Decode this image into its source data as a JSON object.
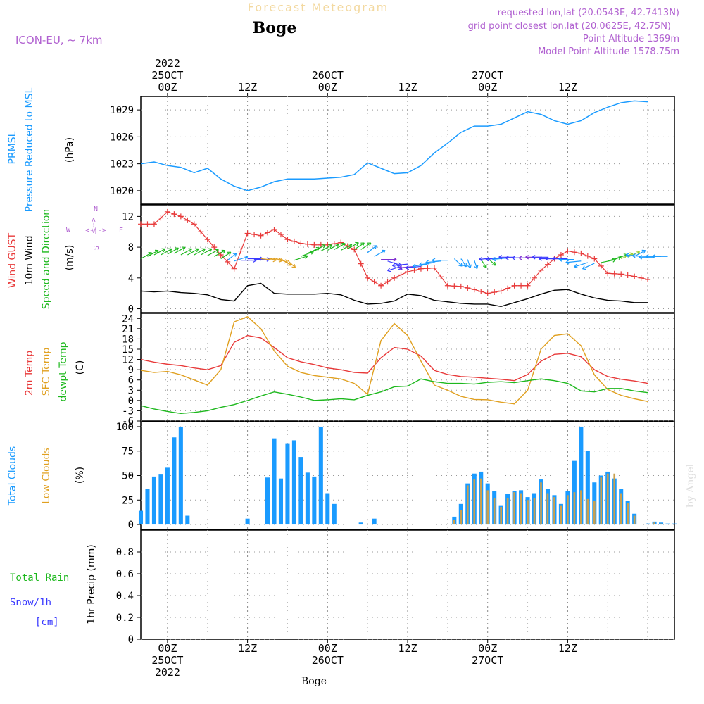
{
  "header": {
    "super_title": "Forecast Meteogram",
    "station": "Boge",
    "model": "ICON-EU, ~ 7km",
    "requested": "requested lon,lat (20.0543E, 42.7413N)",
    "grid_point": "grid point closest lon,lat (20.0625E, 42.75N)",
    "point_alt": "Point Altitude 1369m",
    "model_alt": "Model Point Altitude 1578.75m",
    "credit": "by Angel",
    "footer_station": "Boge"
  },
  "time_axis": {
    "top_labels": [
      {
        "hour": 0,
        "lines": [
          "2022",
          "25OCT",
          "00Z"
        ]
      },
      {
        "hour": 12,
        "lines": [
          "12Z"
        ]
      },
      {
        "hour": 24,
        "lines": [
          "26OCT",
          "00Z"
        ]
      },
      {
        "hour": 36,
        "lines": [
          "12Z"
        ]
      },
      {
        "hour": 48,
        "lines": [
          "27OCT",
          "00Z"
        ]
      },
      {
        "hour": 60,
        "lines": [
          "12Z"
        ]
      }
    ],
    "bottom_labels": [
      {
        "hour": 0,
        "lines": [
          "00Z",
          "25OCT",
          "2022"
        ]
      },
      {
        "hour": 12,
        "lines": [
          "12Z"
        ]
      },
      {
        "hour": 24,
        "lines": [
          "00Z",
          "26OCT"
        ]
      },
      {
        "hour": 36,
        "lines": [
          "12Z"
        ]
      },
      {
        "hour": 48,
        "lines": [
          "00Z",
          "27OCT"
        ]
      },
      {
        "hour": 60,
        "lines": [
          "12Z"
        ]
      }
    ]
  },
  "labels": {
    "p1": [
      {
        "text": "PRMSL",
        "color": "#1a9bff"
      },
      {
        "text": "Pressure Reduced to MSL",
        "color": "#1a9bff"
      },
      {
        "text": "(hPa)",
        "color": "#000000"
      }
    ],
    "p2": [
      {
        "text": "Wind GUST",
        "color": "#e83a3a"
      },
      {
        "text": "10m Wind",
        "color": "#000000"
      },
      {
        "text": "Speed and Direction",
        "color": "#1db81d"
      },
      {
        "text": "(m/s)",
        "color": "#000000"
      }
    ],
    "p3": [
      {
        "text": "2m Temp",
        "color": "#e83a3a"
      },
      {
        "text": "SFC Temp",
        "color": "#e0a020"
      },
      {
        "text": "dewpt Temp",
        "color": "#1db81d"
      },
      {
        "text": "(C)",
        "color": "#000000"
      }
    ],
    "p4": [
      {
        "text": "Total Clouds",
        "color": "#1a9bff"
      },
      {
        "text": "Low Clouds",
        "color": "#e0a020"
      },
      {
        "text": "(%)",
        "color": "#000000"
      }
    ],
    "p5_legend": [
      {
        "text": "Total  Rain",
        "color": "#1db81d"
      },
      {
        "text": "Snow/1h",
        "color": "#3a3aff"
      },
      {
        "text": "[cm]",
        "color": "#3a3aff"
      }
    ],
    "p5_axis": "1hr Precip (mm)",
    "compass": {
      "n": "N",
      "s": "S",
      "w": "W",
      "e": "E",
      "arrow_ns": "<-->",
      "arrow_we": "<-|->"
    }
  },
  "colors": {
    "pressure": "#1a9bff",
    "gust": "#e83a3a",
    "wind_speed": "#000000",
    "temp2m": "#e83a3a",
    "sfc": "#e0a020",
    "dewpt": "#1db81d",
    "total_clouds": "#1a9bff",
    "low_clouds": "#c8a050",
    "purple": "#b060d0",
    "frame": "#000000",
    "grid": "#999999"
  },
  "chart_data": [
    {
      "type": "line",
      "name": "PRMSL",
      "ylim": [
        1018.5,
        1030.5
      ],
      "yticks": [
        1020,
        1023,
        1026,
        1029
      ],
      "x": [
        -4,
        -2,
        0,
        2,
        4,
        6,
        8,
        10,
        12,
        14,
        16,
        18,
        20,
        22,
        24,
        26,
        28,
        30,
        32,
        34,
        36,
        38,
        40,
        42,
        44,
        46,
        48,
        50,
        52,
        54,
        56,
        58,
        60,
        62,
        64,
        66,
        68,
        70,
        72
      ],
      "series": [
        {
          "name": "PRMSL",
          "values": [
            1023.0,
            1023.2,
            1022.8,
            1022.6,
            1022.0,
            1022.5,
            1021.3,
            1020.5,
            1020.0,
            1020.4,
            1021.0,
            1021.3,
            1021.3,
            1021.3,
            1021.4,
            1021.5,
            1021.8,
            1023.1,
            1022.5,
            1021.9,
            1022.0,
            1022.8,
            1024.2,
            1025.3,
            1026.5,
            1027.2,
            1027.2,
            1027.4,
            1028.1,
            1028.8,
            1028.5,
            1027.8,
            1027.4,
            1027.8,
            1028.7,
            1029.3,
            1029.8,
            1030.0,
            1029.9
          ]
        }
      ]
    },
    {
      "type": "line",
      "name": "Wind",
      "ylim": [
        -0.5,
        13.5
      ],
      "yticks": [
        0,
        4,
        8,
        12
      ],
      "x": [
        -4,
        -2,
        0,
        2,
        4,
        6,
        8,
        10,
        12,
        14,
        16,
        18,
        20,
        22,
        24,
        26,
        28,
        30,
        32,
        34,
        36,
        38,
        40,
        42,
        44,
        46,
        48,
        50,
        52,
        54,
        56,
        58,
        60,
        62,
        64,
        66,
        68,
        70,
        72
      ],
      "series": [
        {
          "name": "Wind GUST",
          "values": [
            11.0,
            11.0,
            12.6,
            12.0,
            11.0,
            9.0,
            7.0,
            5.2,
            9.8,
            9.5,
            10.3,
            9.0,
            8.5,
            8.3,
            8.3,
            8.6,
            7.7,
            4.0,
            3.0,
            4.0,
            4.8,
            5.2,
            5.3,
            3.0,
            2.9,
            2.5,
            2.0,
            2.3,
            3.0,
            3.0,
            5.0,
            6.5,
            7.5,
            7.2,
            6.5,
            4.6,
            4.5,
            4.2,
            3.8
          ]
        },
        {
          "name": "10m Wind",
          "values": [
            2.3,
            2.2,
            2.3,
            2.1,
            2.0,
            1.8,
            1.2,
            1.0,
            3.0,
            3.3,
            2.0,
            1.9,
            1.9,
            1.9,
            2.0,
            1.8,
            1.1,
            0.6,
            0.7,
            1.0,
            1.9,
            1.7,
            1.1,
            0.9,
            0.7,
            0.6,
            0.6,
            0.3,
            0.8,
            1.3,
            1.9,
            2.4,
            2.5,
            1.9,
            1.4,
            1.1,
            1.0,
            0.8,
            0.8
          ]
        }
      ]
    },
    {
      "type": "line",
      "name": "Temperature",
      "ylim": [
        -6,
        25.5
      ],
      "yticks": [
        -6,
        -3,
        0,
        3,
        6,
        9,
        12,
        15,
        18,
        21,
        24
      ],
      "x": [
        -4,
        -2,
        0,
        2,
        4,
        6,
        8,
        10,
        12,
        14,
        16,
        18,
        20,
        22,
        24,
        26,
        28,
        30,
        32,
        34,
        36,
        38,
        40,
        42,
        44,
        46,
        48,
        50,
        52,
        54,
        56,
        58,
        60,
        62,
        64,
        66,
        68,
        70,
        72
      ],
      "series": [
        {
          "name": "2m Temp",
          "values": [
            12.0,
            11.2,
            10.6,
            10.2,
            9.5,
            9.0,
            10.2,
            17.0,
            19.0,
            18.3,
            15.5,
            12.5,
            11.3,
            10.5,
            9.5,
            9.0,
            8.2,
            8.0,
            12.5,
            15.5,
            15.0,
            13.0,
            8.8,
            7.6,
            7.0,
            6.8,
            6.5,
            6.2,
            5.8,
            7.6,
            11.5,
            13.5,
            13.8,
            12.8,
            9.0,
            7.0,
            6.2,
            5.7,
            5.0
          ]
        },
        {
          "name": "SFC Temp",
          "values": [
            8.8,
            8.2,
            8.5,
            7.5,
            6.0,
            4.5,
            9.0,
            23.0,
            24.5,
            21.0,
            14.5,
            10.0,
            8.2,
            7.3,
            6.8,
            6.3,
            5.0,
            1.8,
            17.5,
            22.5,
            19.0,
            11.5,
            4.5,
            3.0,
            1.2,
            0.3,
            0.2,
            -0.5,
            -1.0,
            3.0,
            15.0,
            19.0,
            19.5,
            16.0,
            7.5,
            3.2,
            1.5,
            0.5,
            -0.3
          ]
        },
        {
          "name": "dewpt Temp",
          "values": [
            -1.5,
            -2.5,
            -3.2,
            -3.8,
            -3.5,
            -3.0,
            -2.0,
            -1.2,
            0.0,
            1.3,
            2.5,
            1.8,
            1.0,
            0.0,
            0.2,
            0.5,
            0.2,
            1.5,
            2.5,
            4.0,
            4.2,
            6.3,
            5.5,
            5.0,
            5.0,
            4.8,
            5.3,
            5.5,
            5.2,
            5.8,
            6.3,
            5.8,
            5.0,
            2.8,
            2.5,
            3.5,
            3.5,
            2.8,
            2.3
          ]
        }
      ]
    },
    {
      "type": "bar",
      "name": "Clouds",
      "ylim": [
        -5,
        105
      ],
      "yticks": [
        0,
        25,
        50,
        75,
        100
      ],
      "x_start": -4,
      "x_step": 1,
      "series": [
        {
          "name": "Total Clouds",
          "values": [
            14,
            36,
            49,
            51,
            58,
            89,
            100,
            9,
            0,
            0,
            0,
            0,
            0,
            0,
            0,
            0,
            6,
            0,
            0,
            48,
            88,
            47,
            83,
            86,
            69,
            53,
            49,
            100,
            32,
            21,
            0,
            0,
            0,
            2,
            0,
            6,
            0,
            0,
            0,
            0,
            0,
            0,
            0,
            0,
            0,
            0,
            0,
            8,
            21,
            42,
            52,
            54,
            42,
            34,
            19,
            31,
            34,
            35,
            28,
            32,
            46,
            36,
            30,
            21,
            34,
            65,
            100,
            75,
            43,
            50,
            54,
            47,
            36,
            24,
            11,
            0,
            1,
            3,
            2,
            1,
            1,
            0
          ]
        },
        {
          "name": "Low Clouds",
          "values": [
            0,
            0,
            0,
            0,
            0,
            0,
            0,
            0,
            0,
            0,
            0,
            0,
            0,
            0,
            0,
            0,
            0,
            0,
            0,
            0,
            0,
            0,
            0,
            0,
            0,
            0,
            0,
            0,
            0,
            0,
            0,
            0,
            0,
            0,
            0,
            0,
            0,
            0,
            0,
            0,
            0,
            0,
            0,
            0,
            0,
            0,
            0,
            5,
            15,
            40,
            46,
            47,
            35,
            27,
            18,
            27,
            33,
            32,
            25,
            27,
            43,
            32,
            28,
            19,
            30,
            33,
            35,
            26,
            24,
            48,
            52,
            52,
            32,
            22,
            9,
            0,
            0,
            2,
            1,
            0,
            0,
            0
          ]
        }
      ]
    },
    {
      "type": "bar",
      "name": "1hr Precip",
      "ylim": [
        0,
        1.0
      ],
      "yticks": [
        0,
        0.2,
        0.4,
        0.6,
        0.8
      ],
      "series": [
        {
          "name": "Total Rain",
          "values": []
        },
        {
          "name": "Snow/1h",
          "values": []
        }
      ]
    }
  ],
  "wind_barbs": {
    "note_units": "m/s",
    "x_start": -4,
    "x_step": 1,
    "speed": [
      6.5,
      6.8,
      7.0,
      7.0,
      7.1,
      7.2,
      7.0,
      7.0,
      7.0,
      7.0,
      6.9,
      6.8,
      6.5,
      6.3,
      6.2,
      6.3,
      6.5,
      6.4,
      6.5,
      6.6,
      6.6,
      6.5,
      6.3,
      6.3,
      6.8,
      7.2,
      7.5,
      7.5,
      7.6,
      7.7,
      7.6,
      7.8,
      7.7,
      7.7,
      7.3,
      6.8,
      6.4,
      6.2,
      6.0,
      5.5,
      5.8,
      5.5,
      5.5,
      5.8,
      6.0,
      6.2,
      6.3,
      6.5,
      6.5,
      6.4,
      6.3,
      6.4,
      6.6,
      6.6,
      6.6,
      6.6,
      6.7,
      6.6,
      6.6,
      6.6,
      6.7,
      6.7,
      6.5,
      6.5,
      6.5,
      6.4,
      6.2,
      6.0,
      5.9,
      6.0,
      6.2,
      6.4,
      6.5,
      6.7,
      6.8,
      6.8,
      6.8,
      6.7,
      6.8,
      6.8,
      6.8
    ],
    "dir_from": [
      225,
      225,
      225,
      225,
      225,
      225,
      225,
      225,
      225,
      225,
      225,
      225,
      220,
      215,
      240,
      270,
      270,
      270,
      280,
      290,
      300,
      320,
      330,
      240,
      235,
      230,
      225,
      225,
      225,
      225,
      225,
      225,
      220,
      220,
      215,
      225,
      270,
      300,
      330,
      60,
      80,
      80,
      80,
      75,
      75,
      80,
      90,
      330,
      340,
      350,
      350,
      340,
      330,
      80,
      80,
      80,
      90,
      90,
      90,
      90,
      90,
      90,
      90,
      90,
      90,
      90,
      80,
      60,
      50,
      250,
      240,
      235,
      230,
      230,
      225,
      100,
      95,
      90,
      90,
      90,
      90
    ],
    "colors": [
      "#1db81d",
      "#1db81d",
      "#1db81d",
      "#1db81d",
      "#1db81d",
      "#1db81d",
      "#1db81d",
      "#1db81d",
      "#1db81d",
      "#1db81d",
      "#1db81d",
      "#1db81d",
      "#1db81d",
      "#1a9bff",
      "#1a9bff",
      "#3a3aff",
      "#3a3aff",
      "#3a3aff",
      "#e0a020",
      "#e0a020",
      "#e0a020",
      "#e0a020",
      "#e0a020",
      "#1db81d",
      "#1db81d",
      "#1db81d",
      "#1db81d",
      "#1db81d",
      "#1db81d",
      "#1db81d",
      "#1db81d",
      "#1db81d",
      "#1db81d",
      "#1db81d",
      "#1a9bff",
      "#1a9bff",
      "#8030d0",
      "#3a3aff",
      "#3a3aff",
      "#3a3aff",
      "#3a3aff",
      "#8030d0",
      "#3a3aff",
      "#1a9bff",
      "#1a9bff",
      "#1a9bff",
      "#1a9bff",
      "#1a9bff",
      "#1a9bff",
      "#1a9bff",
      "#1a9bff",
      "#1db81d",
      "#1db81d",
      "#3a3aff",
      "#3a3aff",
      "#1a9bff",
      "#3a3aff",
      "#3a3aff",
      "#3a3aff",
      "#8030d0",
      "#8030d0",
      "#3a3aff",
      "#3a3aff",
      "#3a3aff",
      "#3a3aff",
      "#1a9bff",
      "#1a9bff",
      "#1a9bff",
      "#1a9bff",
      "#1db81d",
      "#1db81d",
      "#1db81d",
      "#9acd32",
      "#9acd32",
      "#1a9bff",
      "#1a9bff",
      "#1a9bff",
      "#1a9bff",
      "#1a9bff",
      "#1a9bff",
      "#1a9bff"
    ]
  }
}
